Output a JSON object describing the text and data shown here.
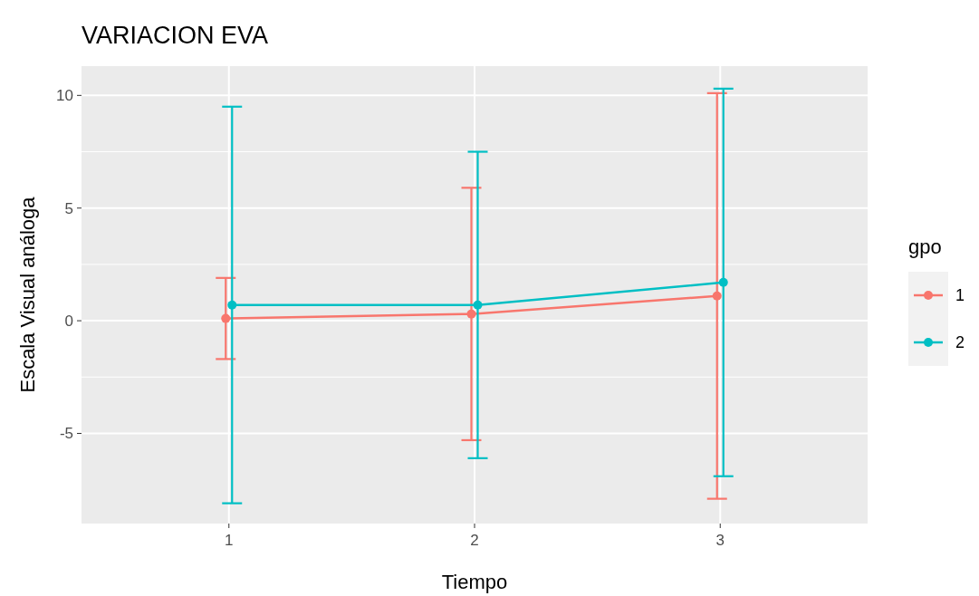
{
  "chart_data": {
    "type": "line",
    "title": "VARIACION EVA",
    "xlabel": "Tiempo",
    "ylabel": "Escala Visual análoga",
    "legend_title": "gpo",
    "categories": [
      "1",
      "2",
      "3"
    ],
    "series": [
      {
        "name": "1",
        "color": "#f8766d",
        "values": [
          0.1,
          0.3,
          1.1
        ],
        "errors": [
          [
            -1.7,
            1.9
          ],
          [
            -5.3,
            5.9
          ],
          [
            -7.9,
            10.1
          ]
        ]
      },
      {
        "name": "2",
        "color": "#00bfc4",
        "values": [
          0.7,
          0.7,
          1.7
        ],
        "errors": [
          [
            -8.1,
            9.5
          ],
          [
            -6.1,
            7.5
          ],
          [
            -6.9,
            10.3
          ]
        ]
      }
    ],
    "ylim": [
      -9,
      11.3
    ],
    "yticks": [
      -5,
      0,
      5,
      10
    ],
    "grid": true,
    "legend": "right",
    "marker": "circle",
    "line_style": "solid"
  }
}
